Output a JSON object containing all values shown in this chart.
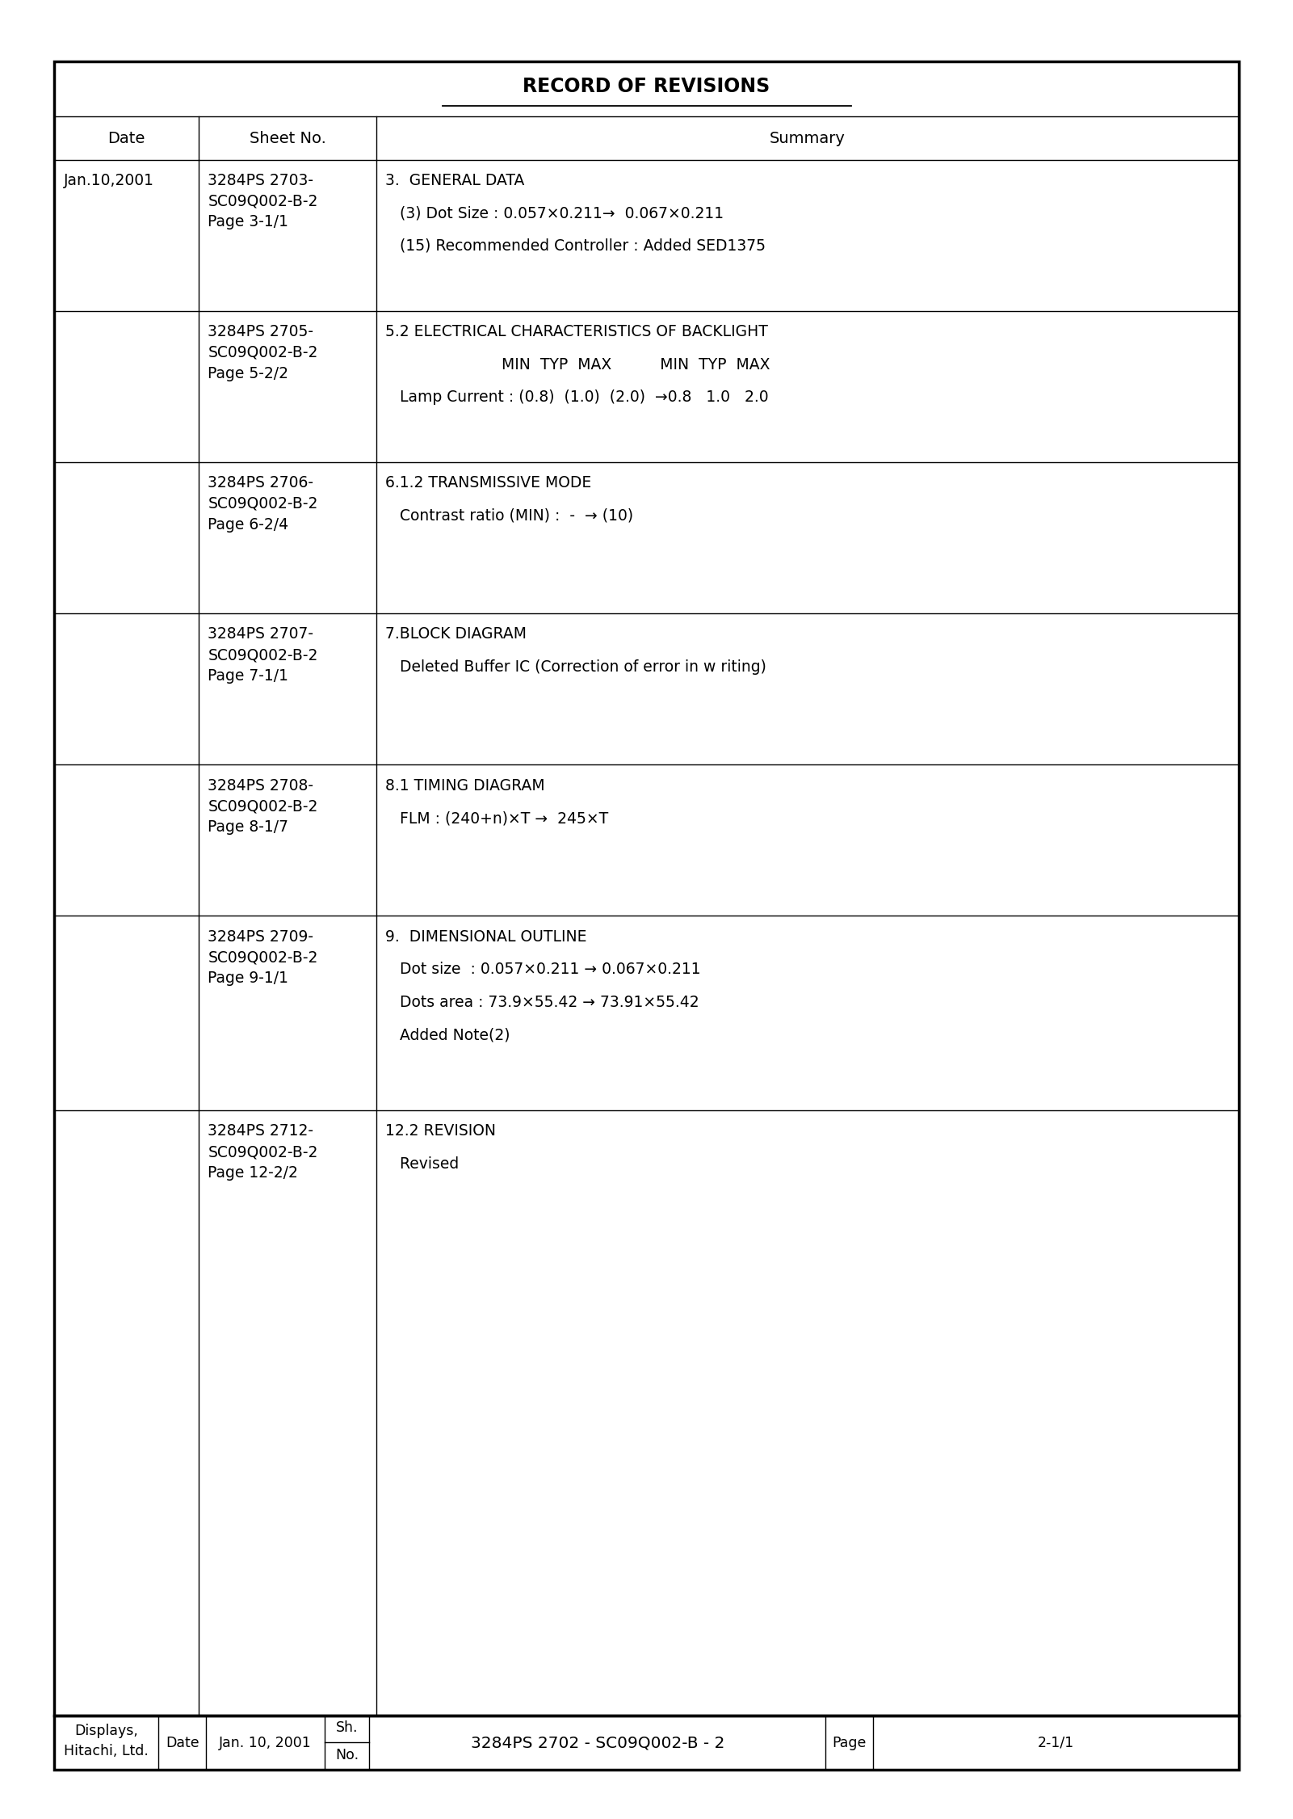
{
  "title": "RECORD OF REVISIONS",
  "bg_color": "#ffffff",
  "header": [
    "Date",
    "Sheet No.",
    "Summary"
  ],
  "rows": [
    {
      "date": "Jan.10,2001",
      "sheet": "3284PS 2703-\nSC09Q002-B-2\nPage 3-1/1",
      "summary_lines": [
        "3.  GENERAL DATA",
        "   (3) Dot Size : 0.057×0.211→  0.067×0.211",
        "   (15) Recommended Controller : Added SED1375"
      ]
    },
    {
      "date": "",
      "sheet": "3284PS 2705-\nSC09Q002-B-2\nPage 5-2/2",
      "summary_lines": [
        "5.2 ELECTRICAL CHARACTERISTICS OF BACKLIGHT",
        "                        MIN  TYP  MAX          MIN  TYP  MAX",
        "   Lamp Current : (0.8)  (1.0)  (2.0)  →0.8   1.0   2.0"
      ]
    },
    {
      "date": "",
      "sheet": "3284PS 2706-\nSC09Q002-B-2\nPage 6-2/4",
      "summary_lines": [
        "6.1.2 TRANSMISSIVE MODE",
        "   Contrast ratio (MIN) :  -  → (10)"
      ]
    },
    {
      "date": "",
      "sheet": "3284PS 2707-\nSC09Q002-B-2\nPage 7-1/1",
      "summary_lines": [
        "7.BLOCK DIAGRAM",
        "   Deleted Buffer IC (Correction of error in w riting)"
      ]
    },
    {
      "date": "",
      "sheet": "3284PS 2708-\nSC09Q002-B-2\nPage 8-1/7",
      "summary_lines": [
        "8.1 TIMING DIAGRAM",
        "   FLM : (240+n)×T →  245×T"
      ]
    },
    {
      "date": "",
      "sheet": "3284PS 2709-\nSC09Q002-B-2\nPage 9-1/1",
      "summary_lines": [
        "9.  DIMENSIONAL OUTLINE",
        "   Dot size  : 0.057×0.211 → 0.067×0.211",
        "   Dots area : 73.9×55.42 → 73.91×55.42",
        "   Added Note(2)"
      ]
    },
    {
      "date": "",
      "sheet": "3284PS 2712-\nSC09Q002-B-2\nPage 12-2/2",
      "summary_lines": [
        "12.2 REVISION",
        "   Revised"
      ]
    }
  ],
  "footer": {
    "company": "Displays,\nHitachi, Ltd.",
    "date_label": "Date",
    "date_value": "Jan. 10, 2001",
    "doc_number": "3284PS 2702 - SC09Q002-B - 2",
    "page_label": "Page",
    "page_number": "2-1/1"
  },
  "font_size": 13.5,
  "header_font_size": 14,
  "title_font_size": 17,
  "lw_thick": 2.5,
  "lw_thin": 1.0
}
